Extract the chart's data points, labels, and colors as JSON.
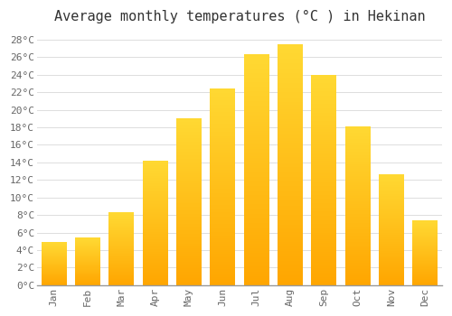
{
  "title": "Average monthly temperatures (°C ) in Hekinan",
  "months": [
    "Jan",
    "Feb",
    "Mar",
    "Apr",
    "May",
    "Jun",
    "Jul",
    "Aug",
    "Sep",
    "Oct",
    "Nov",
    "Dec"
  ],
  "values": [
    4.9,
    5.4,
    8.3,
    14.2,
    19.0,
    22.4,
    26.3,
    27.5,
    24.0,
    18.1,
    12.7,
    7.4
  ],
  "bar_color_top": "#FFD700",
  "bar_color_bottom": "#FFA500",
  "background_color": "#FFFFFF",
  "grid_color": "#DDDDDD",
  "text_color": "#666666",
  "ylim": [
    0,
    29
  ],
  "ytick_step": 2,
  "title_fontsize": 11,
  "tick_fontsize": 8,
  "font_family": "monospace"
}
